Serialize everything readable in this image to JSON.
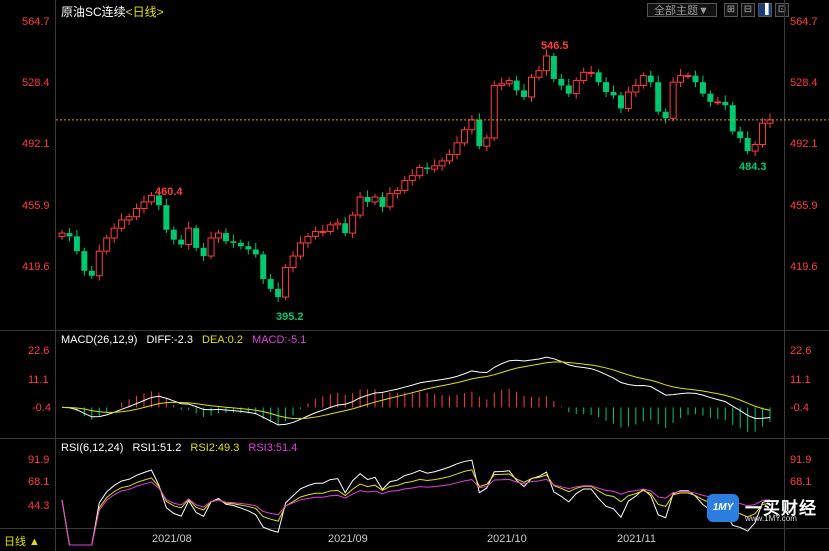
{
  "header": {
    "instrument": "原油SC连续",
    "period": "<日线>",
    "theme_button": "全部主题▼",
    "tool_icons": [
      "grid-icon",
      "expand-icon",
      "layout-icon",
      "zoom-icon"
    ]
  },
  "price_axis": {
    "labels": [
      "564.7",
      "528.4",
      "492.1",
      "455.9",
      "419.6"
    ]
  },
  "price_chart": {
    "high_label": "546.5",
    "low_label": "395.2",
    "local_high_label": "460.4",
    "local_low_label": "484.3",
    "reference_level": 505.0
  },
  "macd": {
    "title": "MACD(26,12,9)",
    "diff": "DIFF:-2.3",
    "dea": "DEA:0.2",
    "macd": "MACD:-5.1",
    "axis_labels": [
      "22.6",
      "11.1",
      "-0.4"
    ]
  },
  "rsi": {
    "title": "RSI(6,12,24)",
    "rsi1": "RSI1:51.2",
    "rsi2": "RSI2:49.3",
    "rsi3": "RSI3:51.4",
    "axis_labels": [
      "91.9",
      "68.1",
      "44.3"
    ]
  },
  "time_axis": {
    "labels": [
      "2021/08",
      "2021/09",
      "2021/10",
      "2021/11"
    ]
  },
  "footer": {
    "period_selector": "日线 ▲"
  },
  "watermark": {
    "logo": "1MY",
    "name": "一买财经",
    "url": "www.1MY.com"
  },
  "colors": {
    "up": "#ff3c3c",
    "down": "#00c86e",
    "diff_line": "#ffffff",
    "dea_line": "#e0e000",
    "macd_label": "#e040e0",
    "rsi3_line": "#e040e0",
    "reference": "#e0a000"
  },
  "chart_data": [
    {
      "type": "candlestick",
      "title": "原油SC连续 <日线>",
      "x_range": [
        "2021/07",
        "2021/12"
      ],
      "ylim": [
        395.2,
        564.7
      ],
      "ticks_y": [
        564.7,
        528.4,
        492.1,
        455.9,
        419.6
      ],
      "ticks_x": [
        "2021/08",
        "2021/09",
        "2021/10",
        "2021/11"
      ],
      "annotations": [
        {
          "label": "546.5",
          "type": "high"
        },
        {
          "label": "395.2",
          "type": "low"
        },
        {
          "label": "460.4",
          "type": "local-high"
        },
        {
          "label": "484.3",
          "type": "local-low"
        }
      ],
      "close": [
        436,
        434,
        425,
        413,
        410,
        425,
        433,
        439,
        444,
        446,
        451,
        455,
        459,
        453,
        438,
        432,
        429,
        439,
        427,
        422,
        433,
        436,
        431,
        430,
        428,
        426,
        423,
        408,
        402,
        397,
        415,
        422,
        430,
        434,
        437,
        437,
        441,
        442,
        436,
        447,
        458,
        455,
        458,
        452,
        460,
        462,
        468,
        471,
        476,
        475,
        477,
        480,
        484,
        491,
        499,
        505,
        489,
        494,
        526,
        527,
        529,
        523,
        519,
        531,
        535,
        544,
        530,
        526,
        521,
        529,
        534,
        534,
        528,
        522,
        520,
        512,
        522,
        526,
        532,
        528,
        510,
        506,
        528,
        532,
        532,
        528,
        521,
        516,
        516,
        514,
        498,
        494,
        486,
        490,
        503,
        505
      ]
    },
    {
      "type": "line",
      "title": "MACD(26,12,9)",
      "ticks_y": [
        22.6,
        11.1,
        -0.4
      ],
      "series": [
        {
          "name": "DIFF",
          "last": -2.3
        },
        {
          "name": "DEA",
          "last": 0.2
        },
        {
          "name": "MACD",
          "last": -5.1
        }
      ]
    },
    {
      "type": "line",
      "title": "RSI(6,12,24)",
      "ticks_y": [
        91.9,
        68.1,
        44.3
      ],
      "series": [
        {
          "name": "RSI1",
          "last": 51.2
        },
        {
          "name": "RSI2",
          "last": 49.3
        },
        {
          "name": "RSI3",
          "last": 51.4
        }
      ]
    }
  ]
}
